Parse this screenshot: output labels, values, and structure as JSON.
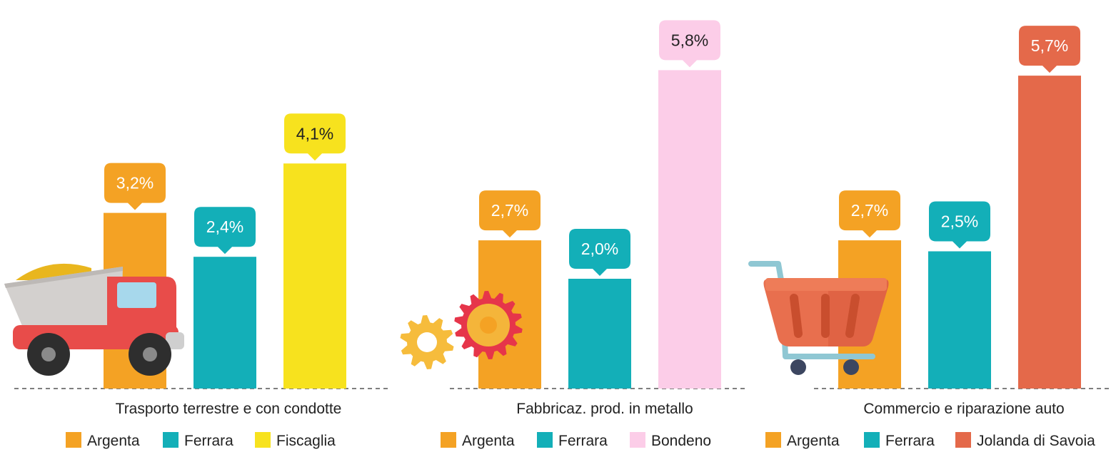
{
  "chart_data": [
    {
      "type": "bar",
      "category_label": "Trasporto terrestre e con condotte",
      "value_suffix": "%",
      "series": [
        {
          "name": "Argenta",
          "value": 3.2,
          "label": "3,2%",
          "color": "#F4A224",
          "label_text_color": "#ffffff"
        },
        {
          "name": "Ferrara",
          "value": 2.4,
          "label": "2,4%",
          "color": "#13AFB8",
          "label_text_color": "#ffffff"
        },
        {
          "name": "Fiscaglia",
          "value": 4.1,
          "label": "4,1%",
          "color": "#F7E21E",
          "label_text_color": "#222222"
        }
      ],
      "icon": "dump-truck-icon"
    },
    {
      "type": "bar",
      "category_label": "Fabbricaz. prod. in metallo",
      "value_suffix": "%",
      "series": [
        {
          "name": "Argenta",
          "value": 2.7,
          "label": "2,7%",
          "color": "#F4A224",
          "label_text_color": "#ffffff"
        },
        {
          "name": "Ferrara",
          "value": 2.0,
          "label": "2,0%",
          "color": "#13AFB8",
          "label_text_color": "#ffffff"
        },
        {
          "name": "Bondeno",
          "value": 5.8,
          "label": "5,8%",
          "color": "#FCCDE8",
          "label_text_color": "#222222"
        }
      ],
      "icon": "gears-icon"
    },
    {
      "type": "bar",
      "category_label": "Commercio e riparazione auto",
      "value_suffix": "%",
      "series": [
        {
          "name": "Argenta",
          "value": 2.7,
          "label": "2,7%",
          "color": "#F4A224",
          "label_text_color": "#ffffff"
        },
        {
          "name": "Ferrara",
          "value": 2.5,
          "label": "2,5%",
          "color": "#13AFB8",
          "label_text_color": "#ffffff"
        },
        {
          "name": "Jolanda di Savoia",
          "value": 5.7,
          "label": "5,7%",
          "color": "#E4694A",
          "label_text_color": "#ffffff"
        }
      ],
      "icon": "shopping-cart-icon"
    }
  ]
}
